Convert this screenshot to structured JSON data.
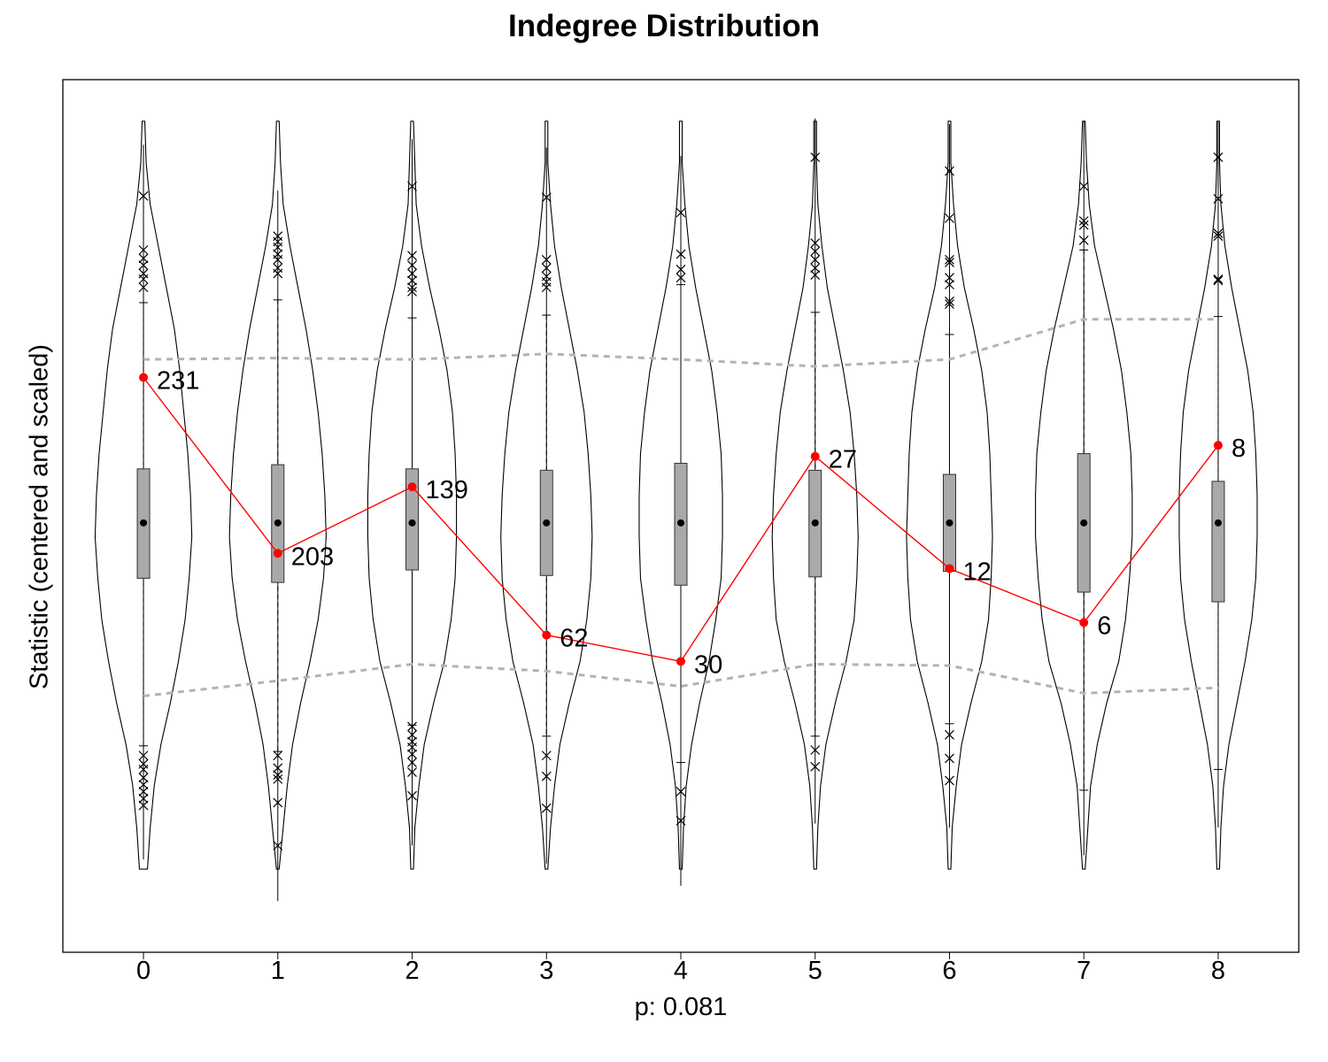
{
  "chart_data": {
    "type": "violin",
    "title": "Indegree Distribution",
    "xlabel": "p: 0.081",
    "ylabel": "Statistic (centered and scaled)",
    "categories": [
      "0",
      "1",
      "2",
      "3",
      "4",
      "5",
      "6",
      "7",
      "8"
    ],
    "y_tick_labels": "none",
    "grid": false,
    "series": [
      {
        "values": [
          1.05,
          -0.22,
          0.26,
          -0.81,
          -1.0,
          0.48,
          -0.33,
          -0.72,
          0.56
        ],
        "labels": [
          "231",
          "203",
          "139",
          "62",
          "30",
          "27",
          "12",
          "6",
          "8"
        ],
        "color": "#ff0000"
      }
    ],
    "simulated": {
      "median": [
        0,
        0,
        0,
        0,
        0,
        0,
        0,
        0,
        0
      ],
      "q1": [
        -0.4,
        -0.43,
        -0.34,
        -0.38,
        -0.45,
        -0.39,
        -0.35,
        -0.5,
        -0.57
      ],
      "q3": [
        0.39,
        0.42,
        0.39,
        0.38,
        0.43,
        0.38,
        0.35,
        0.5,
        0.3
      ],
      "whisker_low": [
        -1.61,
        -1.65,
        -1.46,
        -1.54,
        -1.73,
        -1.54,
        -1.45,
        -1.93,
        -1.78
      ],
      "whisker_high": [
        1.59,
        1.61,
        1.48,
        1.5,
        1.72,
        1.52,
        1.36,
        1.97,
        1.49
      ],
      "min": [
        -2.43,
        -2.73,
        -2.33,
        -2.46,
        -2.62,
        -2.17,
        -2.2,
        -2.4,
        -2.2
      ],
      "max": [
        2.73,
        2.4,
        2.77,
        2.71,
        2.65,
        2.92,
        2.88,
        2.9,
        2.9
      ],
      "envelope_upper": [
        1.18,
        1.19,
        1.18,
        1.22,
        1.18,
        1.13,
        1.18,
        1.47,
        1.47
      ],
      "envelope_lower": [
        -1.25,
        -1.14,
        -1.02,
        -1.07,
        -1.18,
        -1.02,
        -1.03,
        -1.23,
        -1.19
      ],
      "outliers_high": [
        [
          2.36,
          1.97,
          1.91,
          1.86,
          1.8,
          1.76,
          1.7
        ],
        [
          2.07,
          2.03,
          1.99,
          1.94,
          1.9,
          1.84,
          1.8
        ],
        [
          2.43,
          1.93,
          1.86,
          1.8,
          1.75,
          1.7,
          1.67
        ],
        [
          2.35,
          1.9,
          1.84,
          1.78,
          1.74,
          1.7
        ],
        [
          2.24,
          1.94,
          1.83,
          1.77
        ],
        [
          2.64,
          2.02,
          1.96,
          1.9,
          1.84,
          1.79
        ],
        [
          2.54,
          2.2,
          1.9,
          1.88,
          1.77,
          1.72,
          1.6,
          1.58
        ],
        [
          2.43,
          2.18,
          2.15,
          2.04
        ],
        [
          2.64,
          2.34,
          2.09,
          2.07,
          1.76,
          1.75
        ]
      ],
      "outliers_low": [
        [
          -1.68,
          -1.74,
          -1.78,
          -1.84,
          -1.89,
          -1.94,
          -1.99,
          -2.04
        ],
        [
          -1.68,
          -1.77,
          -1.82,
          -1.85,
          -2.02,
          -2.33
        ],
        [
          -1.47,
          -1.53,
          -1.58,
          -1.62,
          -1.67,
          -1.73,
          -1.8,
          -1.97
        ],
        [
          -1.68,
          -1.83,
          -2.06
        ],
        [
          -1.94,
          -2.15
        ],
        [
          -1.64,
          -1.76
        ],
        [
          -1.53,
          -1.7,
          -1.86
        ],
        [],
        []
      ],
      "violin_half_width": [
        [
          0.03,
          0.05,
          0.08,
          0.13,
          0.2,
          0.26,
          0.31,
          0.34,
          0.36,
          0.35,
          0.33,
          0.3,
          0.27,
          0.23,
          0.17,
          0.11,
          0.05,
          0.02,
          0.01
        ],
        [
          0.01,
          0.04,
          0.07,
          0.11,
          0.17,
          0.24,
          0.3,
          0.34,
          0.36,
          0.35,
          0.33,
          0.3,
          0.26,
          0.21,
          0.15,
          0.09,
          0.04,
          0.02,
          0.01
        ],
        [
          0.01,
          0.02,
          0.05,
          0.09,
          0.16,
          0.24,
          0.29,
          0.32,
          0.33,
          0.33,
          0.32,
          0.3,
          0.26,
          0.2,
          0.13,
          0.07,
          0.03,
          0.02,
          0.01
        ],
        [
          0.01,
          0.03,
          0.06,
          0.1,
          0.17,
          0.25,
          0.3,
          0.33,
          0.34,
          0.33,
          0.31,
          0.28,
          0.23,
          0.17,
          0.11,
          0.06,
          0.03,
          0.01,
          0.01
        ],
        [
          0.01,
          0.02,
          0.04,
          0.08,
          0.14,
          0.21,
          0.26,
          0.3,
          0.31,
          0.31,
          0.3,
          0.27,
          0.23,
          0.17,
          0.11,
          0.06,
          0.03,
          0.01,
          0.01
        ],
        [
          0.01,
          0.02,
          0.04,
          0.08,
          0.15,
          0.23,
          0.29,
          0.31,
          0.32,
          0.31,
          0.29,
          0.26,
          0.21,
          0.15,
          0.09,
          0.05,
          0.02,
          0.01,
          0.01
        ],
        [
          0.01,
          0.02,
          0.05,
          0.09,
          0.16,
          0.24,
          0.29,
          0.31,
          0.32,
          0.31,
          0.3,
          0.28,
          0.24,
          0.18,
          0.11,
          0.06,
          0.03,
          0.01,
          0.01
        ],
        [
          0.01,
          0.03,
          0.05,
          0.1,
          0.17,
          0.26,
          0.31,
          0.34,
          0.36,
          0.36,
          0.35,
          0.32,
          0.28,
          0.22,
          0.15,
          0.08,
          0.04,
          0.02,
          0.01
        ],
        [
          0.01,
          0.02,
          0.04,
          0.08,
          0.14,
          0.2,
          0.25,
          0.28,
          0.29,
          0.29,
          0.28,
          0.26,
          0.22,
          0.16,
          0.1,
          0.05,
          0.02,
          0.01,
          0.01
        ]
      ],
      "violin_y_levels": [
        -2.5,
        -2.2,
        -1.9,
        -1.6,
        -1.3,
        -1.0,
        -0.7,
        -0.4,
        -0.1,
        0.2,
        0.5,
        0.8,
        1.1,
        1.4,
        1.7,
        2.0,
        2.3,
        2.6,
        2.9
      ]
    },
    "ylim": [
      -3.1,
      3.2
    ],
    "xlim": [
      -0.6,
      8.6
    ],
    "colors": {
      "observed": "#ff0000",
      "box_fill": "#a9a9a9",
      "envelope": "#b3b3b3",
      "outline": "#000000"
    }
  }
}
